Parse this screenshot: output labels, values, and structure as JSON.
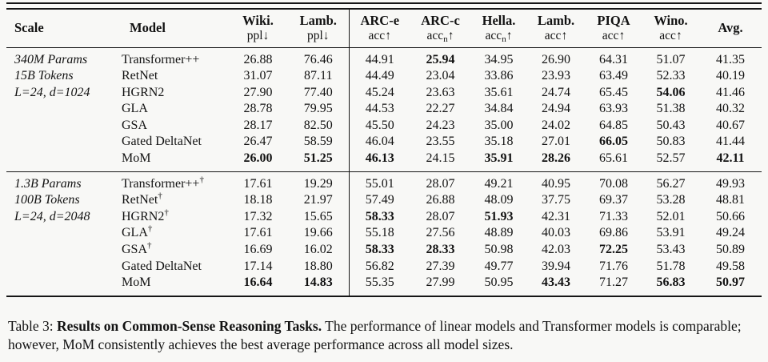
{
  "table": {
    "columns": [
      {
        "label": "Scale",
        "sub": "",
        "sub_script": "",
        "dir": ""
      },
      {
        "label": "Model",
        "sub": "",
        "sub_script": "",
        "dir": ""
      },
      {
        "label": "Wiki.",
        "sub": "ppl",
        "sub_script": "",
        "dir": "↓"
      },
      {
        "label": "Lamb.",
        "sub": "ppl",
        "sub_script": "",
        "dir": "↓"
      },
      {
        "label": "ARC-e",
        "sub": "acc",
        "sub_script": "",
        "dir": "↑"
      },
      {
        "label": "ARC-c",
        "sub": "acc",
        "sub_script": "n",
        "dir": "↑"
      },
      {
        "label": "Hella.",
        "sub": "acc",
        "sub_script": "n",
        "dir": "↑"
      },
      {
        "label": "Lamb.",
        "sub": "acc",
        "sub_script": "",
        "dir": "↑"
      },
      {
        "label": "PIQA",
        "sub": "acc",
        "sub_script": "",
        "dir": "↑"
      },
      {
        "label": "Wino.",
        "sub": "acc",
        "sub_script": "",
        "dir": "↑"
      },
      {
        "label": "Avg.",
        "sub": "",
        "sub_script": "",
        "dir": ""
      }
    ],
    "groups": [
      {
        "scale_lines": [
          "340M Params",
          "15B Tokens",
          "L=24, d=1024",
          "",
          "",
          "",
          ""
        ],
        "rows": [
          {
            "model": "Transformer++",
            "sup": "",
            "values": [
              "26.88",
              "76.46",
              "44.91",
              "25.94",
              "34.95",
              "26.90",
              "64.31",
              "51.07",
              "41.35"
            ],
            "bold": [
              3
            ]
          },
          {
            "model": "RetNet",
            "sup": "",
            "values": [
              "31.07",
              "87.11",
              "44.49",
              "23.04",
              "33.86",
              "23.93",
              "63.49",
              "52.33",
              "40.19"
            ],
            "bold": []
          },
          {
            "model": "HGRN2",
            "sup": "",
            "values": [
              "27.90",
              "77.40",
              "45.24",
              "23.63",
              "35.61",
              "24.74",
              "65.45",
              "54.06",
              "41.46"
            ],
            "bold": [
              7
            ]
          },
          {
            "model": "GLA",
            "sup": "",
            "values": [
              "28.78",
              "79.95",
              "44.53",
              "22.27",
              "34.84",
              "24.94",
              "63.93",
              "51.38",
              "40.32"
            ],
            "bold": []
          },
          {
            "model": "GSA",
            "sup": "",
            "values": [
              "28.17",
              "82.50",
              "45.50",
              "24.23",
              "35.00",
              "24.02",
              "64.85",
              "50.43",
              "40.67"
            ],
            "bold": []
          },
          {
            "model": "Gated DeltaNet",
            "sup": "",
            "values": [
              "26.47",
              "58.59",
              "46.04",
              "23.55",
              "35.18",
              "27.01",
              "66.05",
              "50.83",
              "41.44"
            ],
            "bold": [
              6
            ]
          },
          {
            "model": "MoM",
            "sup": "",
            "values": [
              "26.00",
              "51.25",
              "46.13",
              "24.15",
              "35.91",
              "28.26",
              "65.61",
              "52.57",
              "42.11"
            ],
            "bold": [
              0,
              1,
              2,
              4,
              5,
              8
            ]
          }
        ]
      },
      {
        "scale_lines": [
          "1.3B Params",
          "100B Tokens",
          "L=24, d=2048",
          "",
          "",
          "",
          ""
        ],
        "rows": [
          {
            "model": "Transformer++",
            "sup": "†",
            "values": [
              "17.61",
              "19.29",
              "55.01",
              "28.07",
              "49.21",
              "40.95",
              "70.08",
              "56.27",
              "49.93"
            ],
            "bold": []
          },
          {
            "model": "RetNet",
            "sup": "†",
            "values": [
              "18.18",
              "21.97",
              "57.49",
              "26.88",
              "48.09",
              "37.75",
              "69.37",
              "53.28",
              "48.81"
            ],
            "bold": []
          },
          {
            "model": "HGRN2",
            "sup": "†",
            "values": [
              "17.32",
              "15.65",
              "58.33",
              "28.07",
              "51.93",
              "42.31",
              "71.33",
              "52.01",
              "50.66"
            ],
            "bold": [
              2,
              4
            ]
          },
          {
            "model": "GLA",
            "sup": "†",
            "values": [
              "17.61",
              "19.66",
              "55.18",
              "27.56",
              "48.89",
              "40.03",
              "69.86",
              "53.91",
              "49.24"
            ],
            "bold": []
          },
          {
            "model": "GSA",
            "sup": "†",
            "values": [
              "16.69",
              "16.02",
              "58.33",
              "28.33",
              "50.98",
              "42.03",
              "72.25",
              "53.43",
              "50.89"
            ],
            "bold": [
              2,
              3,
              6
            ]
          },
          {
            "model": "Gated DeltaNet",
            "sup": "",
            "values": [
              "17.14",
              "18.80",
              "56.82",
              "27.39",
              "49.77",
              "39.94",
              "71.76",
              "51.78",
              "49.58"
            ],
            "bold": []
          },
          {
            "model": "MoM",
            "sup": "",
            "values": [
              "16.64",
              "14.83",
              "55.35",
              "27.99",
              "50.95",
              "43.43",
              "71.27",
              "56.83",
              "50.97"
            ],
            "bold": [
              0,
              1,
              5,
              7,
              8
            ]
          }
        ]
      }
    ]
  },
  "caption": {
    "prefix": "Table 3: ",
    "bold": "Results on Common-Sense Reasoning Tasks.",
    "rest": " The performance of linear models and Transformer models is comparable; however, MoM consistently achieves the best average performance across all model sizes."
  }
}
